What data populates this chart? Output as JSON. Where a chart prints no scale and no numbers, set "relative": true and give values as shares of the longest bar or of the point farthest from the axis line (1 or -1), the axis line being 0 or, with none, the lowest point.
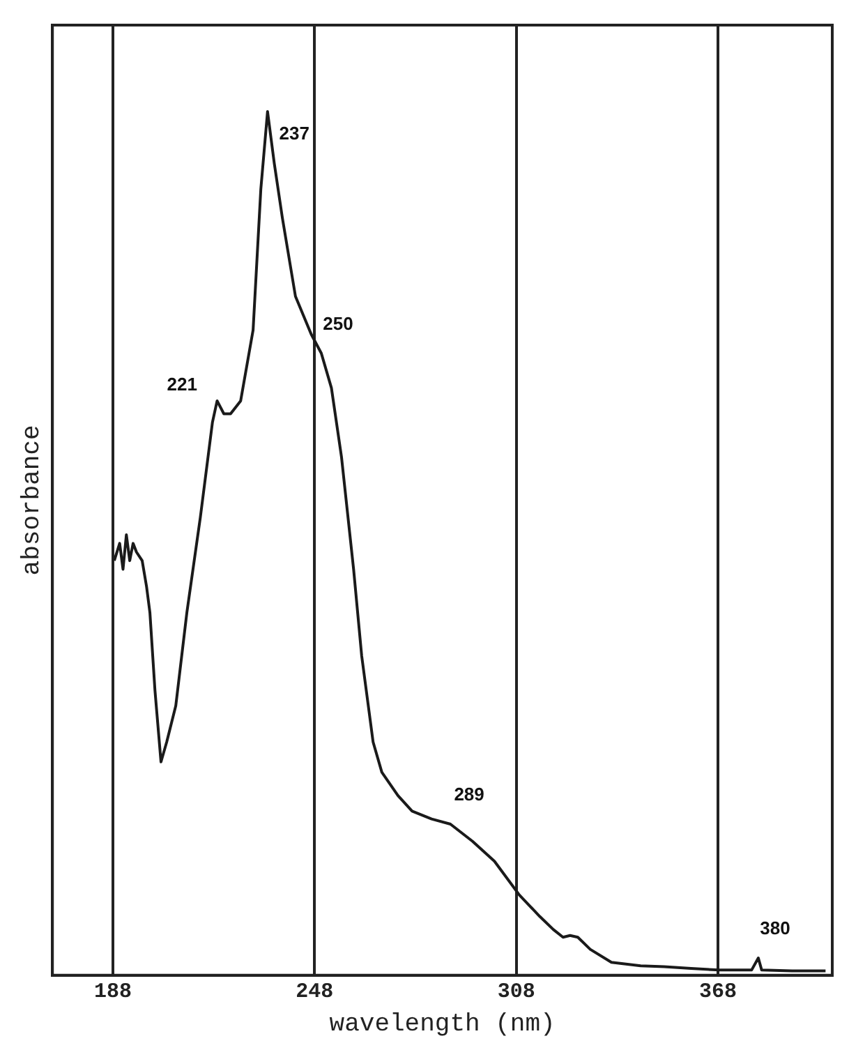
{
  "chart_data": {
    "type": "line",
    "xlabel": "wavelength (nm)",
    "ylabel": "absorbance",
    "relative": true,
    "xlim": [
      170,
      402
    ],
    "xticks": [
      188,
      248,
      308,
      368
    ],
    "grid": "x",
    "legend": false,
    "marker": "none",
    "line_style": "solid",
    "series": [
      {
        "color": "#1a1a1a",
        "x": [
          188.4,
          190,
          191,
          192,
          193,
          194,
          195,
          196.7,
          198,
          199,
          200.5,
          202.3,
          204,
          206.7,
          210,
          214,
          217.6,
          219,
          221,
          223,
          226,
          229.7,
          232,
          234,
          236,
          238.4,
          242.3,
          247,
          250,
          253,
          256,
          259.6,
          262,
          265.4,
          268,
          272.8,
          277,
          282.8,
          288.4,
          295,
          301.5,
          308.9,
          315,
          319,
          321.9,
          324,
          326.3,
          330,
          336.3,
          345,
          352,
          360,
          368.4,
          378,
          380,
          381,
          390,
          400
        ],
        "values": [
          0.48,
          0.5,
          0.47,
          0.51,
          0.48,
          0.5,
          0.49,
          0.48,
          0.45,
          0.42,
          0.33,
          0.247,
          0.27,
          0.312,
          0.42,
          0.53,
          0.64,
          0.665,
          0.65,
          0.65,
          0.665,
          0.747,
          0.91,
          1.0,
          0.94,
          0.877,
          0.786,
          0.742,
          0.72,
          0.68,
          0.6,
          0.47,
          0.37,
          0.27,
          0.235,
          0.208,
          0.19,
          0.181,
          0.175,
          0.155,
          0.132,
          0.093,
          0.068,
          0.053,
          0.044,
          0.046,
          0.044,
          0.03,
          0.015,
          0.011,
          0.01,
          0.008,
          0.006,
          0.006,
          0.02,
          0.006,
          0.005,
          0.005
        ]
      }
    ],
    "annotations": [
      {
        "text": "221",
        "x": 221,
        "y": 0.65
      },
      {
        "text": "237",
        "x": 237,
        "y": 0.94
      },
      {
        "text": "250",
        "x": 250,
        "y": 0.72
      },
      {
        "text": "289",
        "x": 289,
        "y": 0.175
      },
      {
        "text": "380",
        "x": 380,
        "y": 0.02
      }
    ]
  }
}
